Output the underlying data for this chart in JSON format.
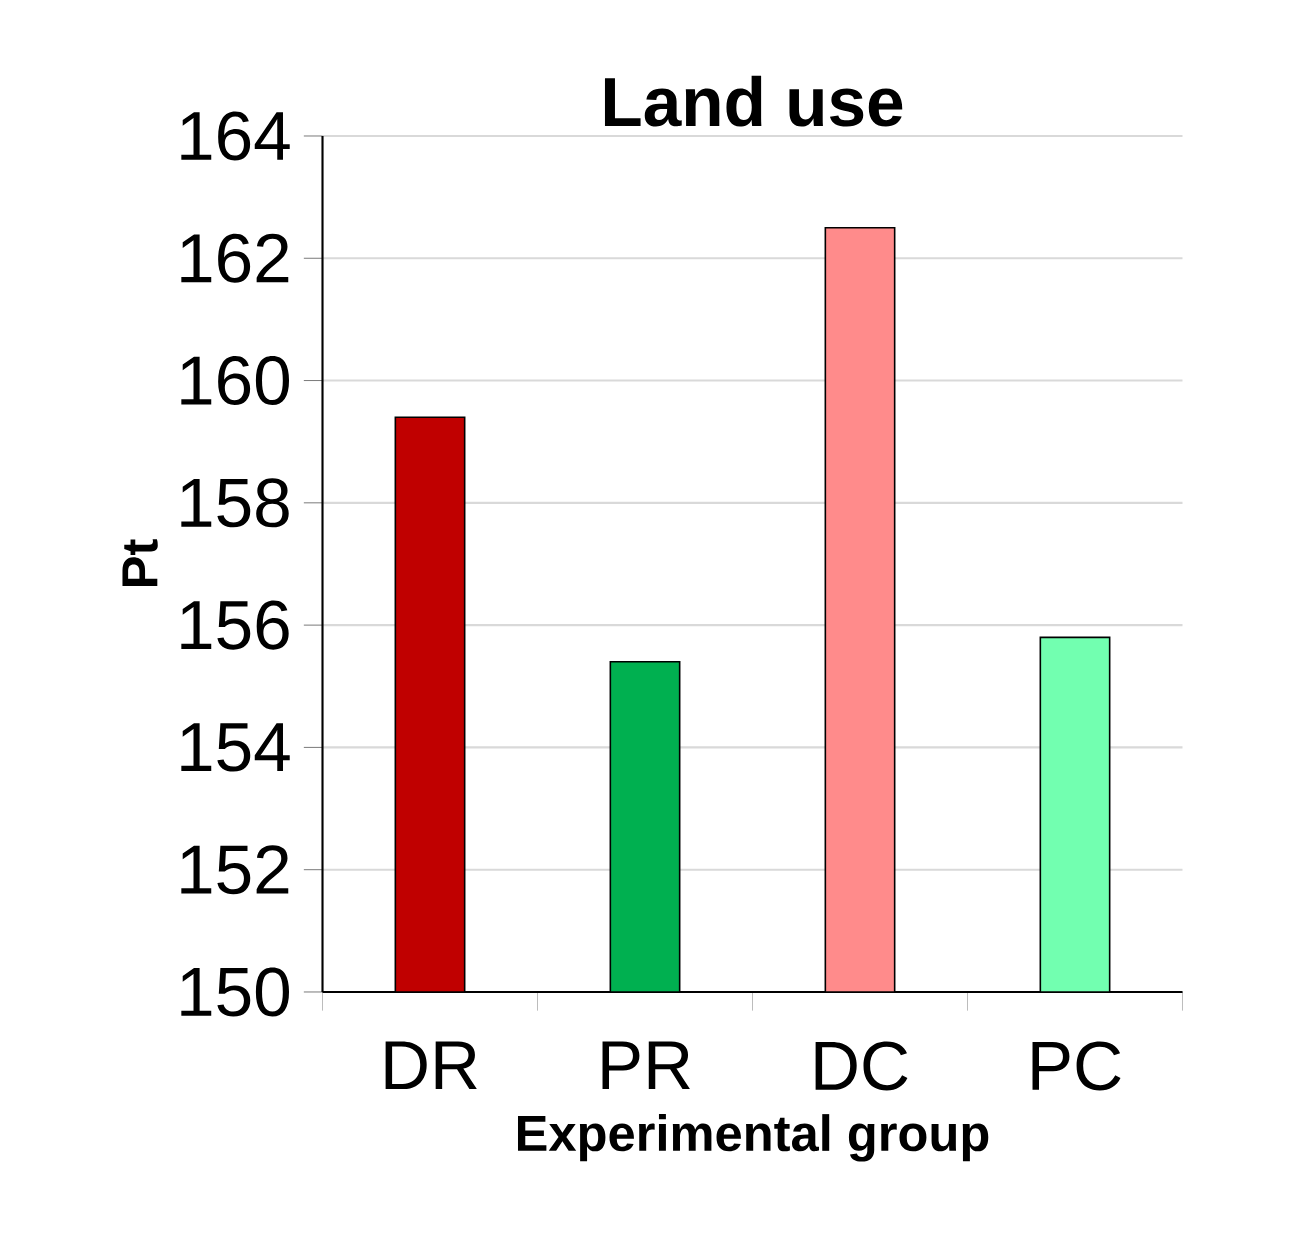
{
  "chart_data": {
    "type": "bar",
    "title": "Land use",
    "xlabel": "Experimental group",
    "ylabel": "Pt",
    "categories": [
      "DR",
      "PR",
      "DC",
      "PC"
    ],
    "values": [
      159.4,
      155.4,
      162.5,
      155.8
    ],
    "colors": [
      "#c00000",
      "#00b050",
      "#ff8b8b",
      "#72ffb0"
    ],
    "ylim": [
      150,
      164
    ],
    "yticks": [
      150,
      152,
      154,
      156,
      158,
      160,
      162,
      164
    ],
    "grid": "y"
  }
}
